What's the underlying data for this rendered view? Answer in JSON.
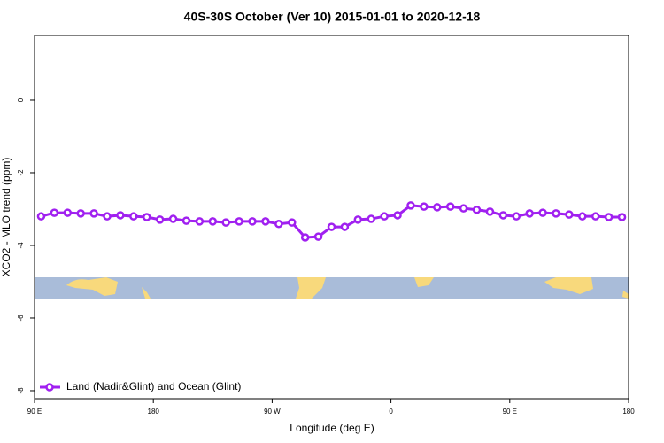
{
  "chart_data": {
    "type": "line",
    "title": "40S-30S October (Ver 10)   2015-01-01 to 2020-12-18",
    "x_label": "Longitude (deg E)",
    "y_label": "XCO2 - MLO trend (ppm)",
    "x": [
      95,
      105,
      115,
      125,
      135,
      145,
      155,
      165,
      175,
      185,
      195,
      205,
      215,
      225,
      235,
      245,
      255,
      265,
      275,
      285,
      295,
      305,
      315,
      325,
      335,
      345,
      355,
      365,
      375,
      385,
      395,
      405,
      415,
      425,
      435,
      445,
      455,
      465,
      475,
      485,
      495,
      505,
      515,
      525,
      535
    ],
    "series": [
      {
        "name": "Land (Nadir&Glint) and Ocean (Glint)",
        "color": "#a020f0",
        "values": [
          -3.2,
          -3.1,
          -3.1,
          -3.12,
          -3.12,
          -3.2,
          -3.17,
          -3.2,
          -3.22,
          -3.29,
          -3.27,
          -3.32,
          -3.34,
          -3.34,
          -3.37,
          -3.34,
          -3.34,
          -3.34,
          -3.41,
          -3.37,
          -3.78,
          -3.76,
          -3.49,
          -3.49,
          -3.29,
          -3.27,
          -3.2,
          -3.17,
          -2.9,
          -2.93,
          -2.95,
          -2.93,
          -2.98,
          -3.02,
          -3.07,
          -3.17,
          -3.2,
          -3.12,
          -3.1,
          -3.12,
          -3.15,
          -3.2,
          -3.2,
          -3.22,
          -3.22
        ]
      }
    ],
    "xlim": [
      90,
      540
    ],
    "xticks": [
      {
        "value": 90,
        "label": "90 E"
      },
      180,
      {
        "value": 270,
        "label": "90 W"
      },
      {
        "value": 360,
        "label": "0"
      },
      {
        "value": 450,
        "label": "90 E"
      },
      {
        "value": 540,
        "label": "180"
      }
    ],
    "ylim": [
      -8.22,
      1.78
    ],
    "yticks": [
      0,
      -2,
      -4,
      -6,
      -8
    ],
    "grid": false,
    "legend": "bottom-left"
  }
}
